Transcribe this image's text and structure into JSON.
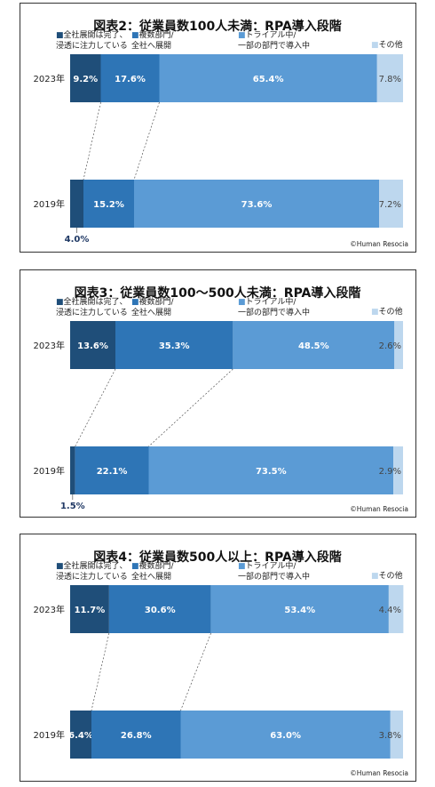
{
  "colors": {
    "c0": "#1f4e79",
    "c1": "#2e75b6",
    "c2": "#5b9bd5",
    "c3": "#bdd7ee"
  },
  "legend_labels": [
    [
      "■全社展開は完了、",
      "浸透に注力している"
    ],
    [
      "■複数部門/",
      "全社へ展開"
    ],
    [
      "■トライアル中/",
      "一部の部門で導入中"
    ],
    [
      "■その他"
    ]
  ],
  "credit": "©Human Resocia",
  "chart_data": [
    {
      "type": "bar",
      "orientation": "horizontal",
      "stacked": "100%",
      "title": "図表2：従業員数100人未満：RPA導入段階",
      "categories": [
        "2023年",
        "2019年"
      ],
      "series": [
        {
          "name": "全社展開は完了、浸透に注力している",
          "values": [
            9.2,
            4.0
          ]
        },
        {
          "name": "複数部門/全社へ展開",
          "values": [
            17.6,
            15.2
          ]
        },
        {
          "name": "トライアル中/一部の部門で導入中",
          "values": [
            65.4,
            73.6
          ]
        },
        {
          "name": "その他",
          "values": [
            7.8,
            7.2
          ]
        }
      ]
    },
    {
      "type": "bar",
      "orientation": "horizontal",
      "stacked": "100%",
      "title": "図表3：従業員数100～500人未満：RPA導入段階",
      "categories": [
        "2023年",
        "2019年"
      ],
      "series": [
        {
          "name": "全社展開は完了、浸透に注力している",
          "values": [
            13.6,
            1.5
          ]
        },
        {
          "name": "複数部門/全社へ展開",
          "values": [
            35.3,
            22.1
          ]
        },
        {
          "name": "トライアル中/一部の部門で導入中",
          "values": [
            48.5,
            73.5
          ]
        },
        {
          "name": "その他",
          "values": [
            2.6,
            2.9
          ]
        }
      ]
    },
    {
      "type": "bar",
      "orientation": "horizontal",
      "stacked": "100%",
      "title": "図表4：従業員数500人以上：RPA導入段階",
      "categories": [
        "2023年",
        "2019年"
      ],
      "series": [
        {
          "name": "全社展開は完了、浸透に注力している",
          "values": [
            11.7,
            6.4
          ]
        },
        {
          "name": "複数部門/全社へ展開",
          "values": [
            30.6,
            26.8
          ]
        },
        {
          "name": "トライアル中/一部の部門で導入中",
          "values": [
            53.4,
            63.0
          ]
        },
        {
          "name": "その他",
          "values": [
            4.4,
            3.8
          ]
        }
      ]
    }
  ]
}
